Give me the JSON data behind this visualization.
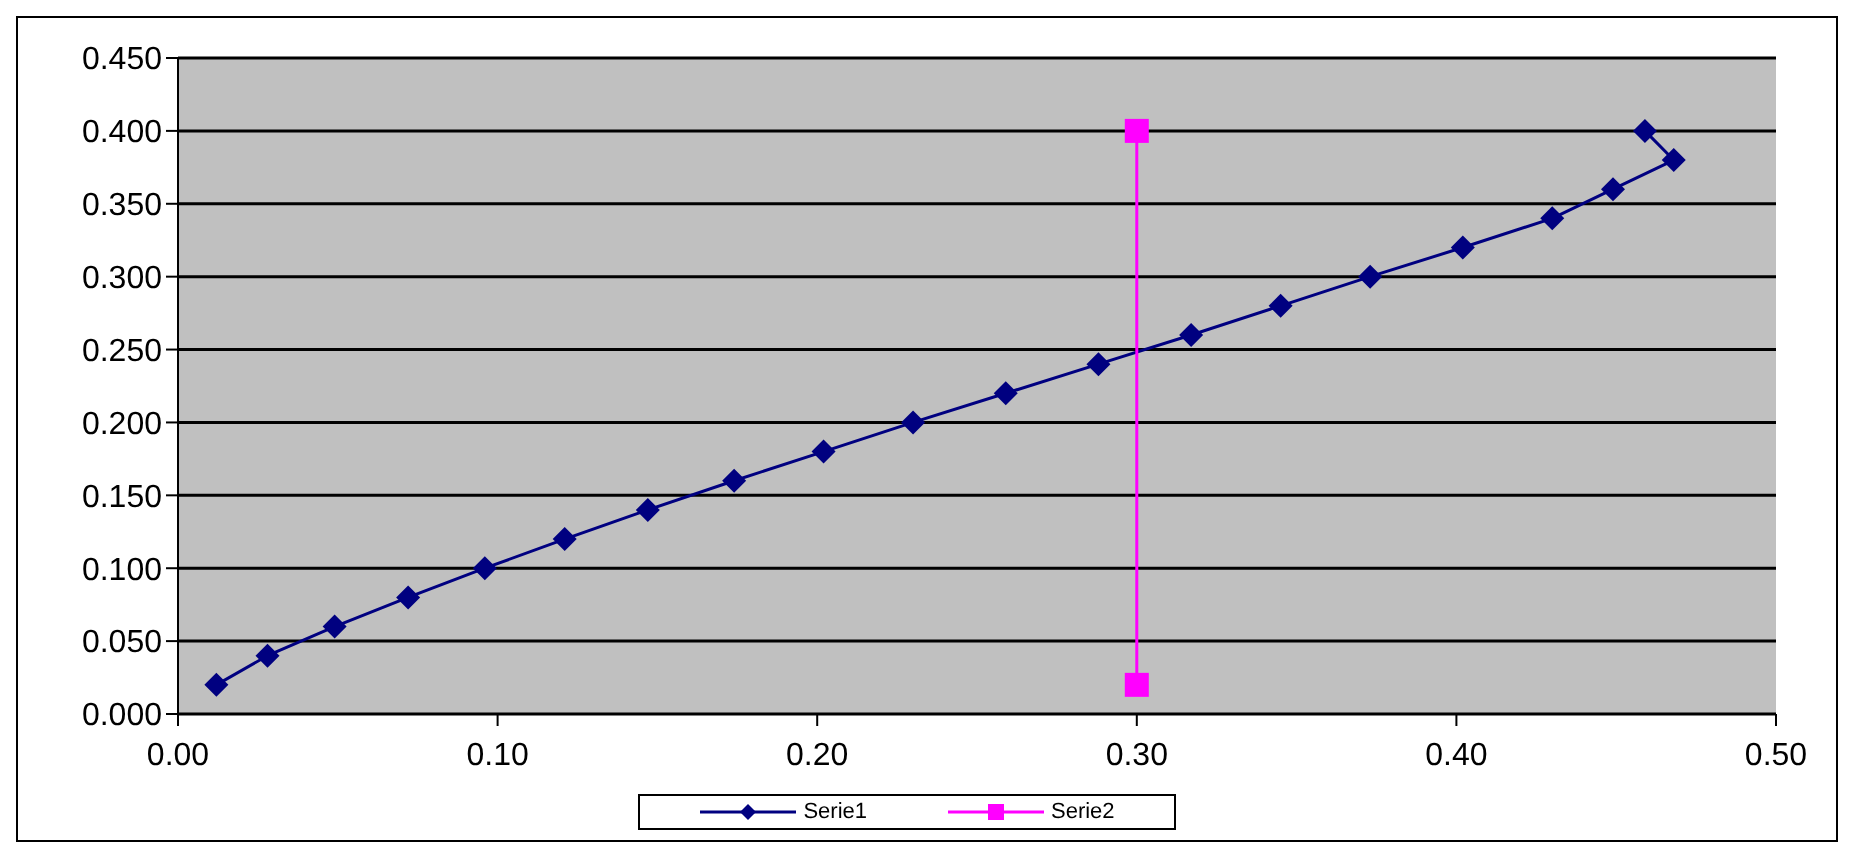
{
  "chart_data": {
    "type": "line",
    "xlim": [
      0,
      0.5
    ],
    "xticks": [
      {
        "value": 0,
        "label": "0.00"
      },
      {
        "value": 0.1,
        "label": "0.10"
      },
      {
        "value": 0.2,
        "label": "0.20"
      },
      {
        "value": 0.3,
        "label": "0.30"
      },
      {
        "value": 0.4,
        "label": "0.40"
      },
      {
        "value": 0.5,
        "label": "0.50"
      }
    ],
    "ylim": [
      0,
      0.45
    ],
    "yticks": [
      {
        "value": 0,
        "label": "0.000"
      },
      {
        "value": 0.05,
        "label": "0.050"
      },
      {
        "value": 0.1,
        "label": "0.100"
      },
      {
        "value": 0.15,
        "label": "0.150"
      },
      {
        "value": 0.2,
        "label": "0.200"
      },
      {
        "value": 0.25,
        "label": "0.250"
      },
      {
        "value": 0.3,
        "label": "0.300"
      },
      {
        "value": 0.35,
        "label": "0.350"
      },
      {
        "value": 0.4,
        "label": "0.400"
      },
      {
        "value": 0.45,
        "label": "0.450"
      }
    ],
    "grid": "y",
    "legend": "bottom",
    "line_style": "solid",
    "series": [
      {
        "name": "Serie1",
        "color": "#000080",
        "marker": "diamond",
        "x": [
          0.012,
          0.028,
          0.049,
          0.072,
          0.096,
          0.121,
          0.147,
          0.174,
          0.202,
          0.23,
          0.259,
          0.288,
          0.317,
          0.345,
          0.373,
          0.402,
          0.43,
          0.449,
          0.468,
          0.459
        ],
        "values": [
          0.02,
          0.04,
          0.06,
          0.08,
          0.1,
          0.12,
          0.14,
          0.16,
          0.18,
          0.2,
          0.22,
          0.24,
          0.26,
          0.28,
          0.3,
          0.32,
          0.34,
          0.36,
          0.38,
          0.4
        ]
      },
      {
        "name": "Serie2",
        "color": "#ff00ff",
        "marker": "square",
        "x": [
          0.3,
          0.3
        ],
        "values": [
          0.4,
          0.02
        ]
      }
    ]
  }
}
